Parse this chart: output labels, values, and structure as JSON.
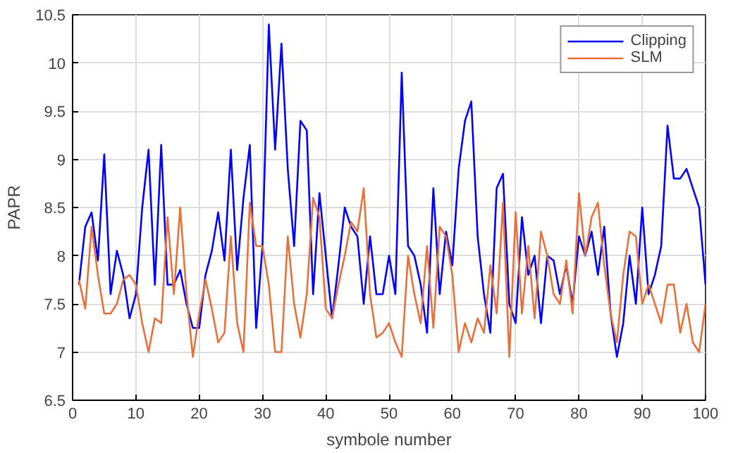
{
  "chart_data": {
    "type": "line",
    "xlabel": "symbole number",
    "ylabel": "PAPR",
    "x": [
      1,
      2,
      3,
      4,
      5,
      6,
      7,
      8,
      9,
      10,
      11,
      12,
      13,
      14,
      15,
      16,
      17,
      18,
      19,
      20,
      21,
      22,
      23,
      24,
      25,
      26,
      27,
      28,
      29,
      30,
      31,
      32,
      33,
      34,
      35,
      36,
      37,
      38,
      39,
      40,
      41,
      42,
      43,
      44,
      45,
      46,
      47,
      48,
      49,
      50,
      51,
      52,
      53,
      54,
      55,
      56,
      57,
      58,
      59,
      60,
      61,
      62,
      63,
      64,
      65,
      66,
      67,
      68,
      69,
      70,
      71,
      72,
      73,
      74,
      75,
      76,
      77,
      78,
      79,
      80,
      81,
      82,
      83,
      84,
      85,
      86,
      87,
      88,
      89,
      90,
      91,
      92,
      93,
      94,
      95,
      96,
      97,
      98,
      99,
      100
    ],
    "series": [
      {
        "name": "Clipping",
        "color": "#0000ff",
        "values": [
          7.7,
          8.3,
          8.45,
          7.95,
          9.05,
          7.6,
          8.05,
          7.8,
          7.35,
          7.6,
          8.5,
          9.1,
          7.7,
          9.15,
          7.7,
          7.7,
          7.85,
          7.5,
          7.25,
          7.25,
          7.8,
          8.05,
          8.45,
          7.95,
          9.1,
          7.85,
          8.6,
          9.15,
          7.25,
          8.1,
          10.4,
          9.1,
          10.2,
          8.9,
          8.1,
          9.4,
          9.3,
          7.6,
          8.65,
          8.0,
          7.35,
          7.9,
          8.5,
          8.3,
          8.2,
          7.5,
          8.2,
          7.6,
          7.6,
          8.0,
          7.6,
          9.9,
          8.1,
          8.0,
          7.7,
          7.2,
          8.7,
          7.6,
          8.25,
          7.9,
          8.9,
          9.4,
          9.6,
          8.2,
          7.6,
          7.2,
          8.7,
          8.85,
          7.5,
          7.3,
          8.4,
          7.8,
          8.0,
          7.3,
          8.0,
          7.95,
          7.6,
          7.9,
          7.5,
          8.2,
          8.0,
          8.25,
          7.8,
          8.3,
          7.4,
          6.95,
          7.3,
          8.0,
          7.5,
          8.5,
          7.6,
          7.8,
          8.1,
          9.35,
          8.8,
          8.8,
          8.9,
          8.7,
          8.5,
          7.7
        ]
      },
      {
        "name": "SLM",
        "color": "#e8703a",
        "values": [
          7.75,
          7.45,
          8.3,
          7.8,
          7.4,
          7.4,
          7.5,
          7.75,
          7.8,
          7.7,
          7.3,
          7.0,
          7.35,
          7.3,
          8.4,
          7.6,
          8.5,
          7.6,
          6.95,
          7.4,
          7.75,
          7.45,
          7.1,
          7.2,
          8.2,
          7.3,
          7.0,
          8.55,
          8.1,
          8.1,
          7.7,
          7.0,
          7.0,
          8.2,
          7.5,
          7.15,
          7.6,
          8.6,
          8.4,
          7.45,
          7.35,
          7.7,
          8.0,
          8.35,
          8.25,
          8.7,
          7.6,
          7.15,
          7.2,
          7.3,
          7.1,
          6.95,
          8.0,
          7.6,
          7.3,
          8.1,
          7.25,
          8.3,
          8.2,
          7.8,
          7.0,
          7.3,
          7.1,
          7.35,
          7.2,
          7.9,
          7.4,
          8.55,
          6.95,
          8.45,
          7.4,
          8.1,
          7.35,
          8.25,
          8.0,
          7.6,
          7.5,
          7.95,
          7.4,
          8.65,
          8.0,
          8.4,
          8.55,
          7.9,
          7.4,
          7.1,
          7.8,
          8.25,
          8.2,
          7.5,
          7.7,
          7.5,
          7.3,
          7.7,
          7.7,
          7.2,
          7.5,
          7.1,
          7.0,
          7.5
        ]
      }
    ],
    "xlim": [
      0,
      100
    ],
    "xticks": [
      0,
      10,
      20,
      30,
      40,
      50,
      60,
      70,
      80,
      90,
      100
    ],
    "ylim": [
      6.5,
      10.5
    ],
    "yticks": [
      6.5,
      7,
      7.5,
      8,
      8.5,
      9,
      9.5,
      10,
      10.5
    ],
    "grid": true,
    "legend": "top right",
    "line_style": "solid"
  }
}
